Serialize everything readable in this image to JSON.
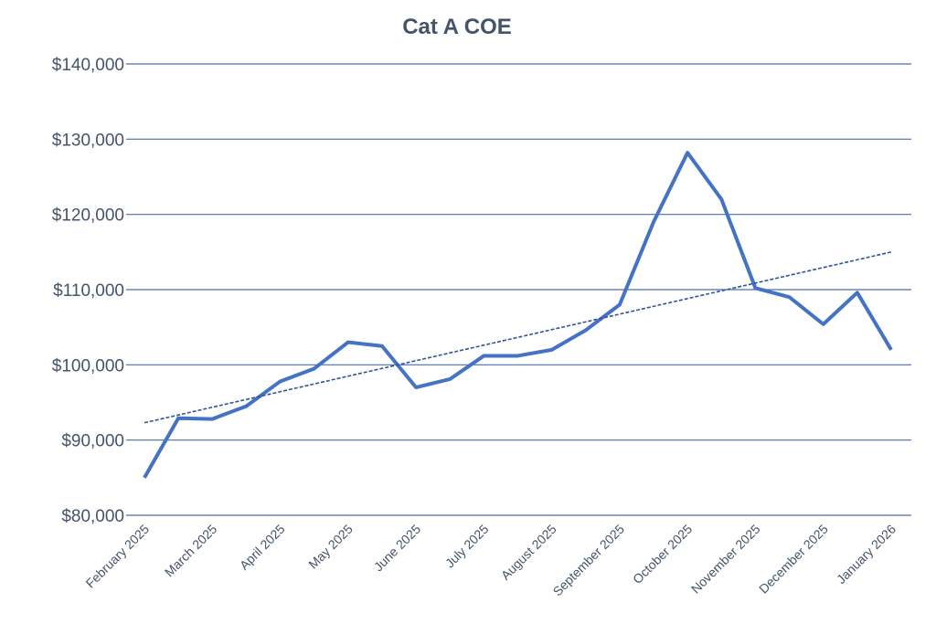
{
  "chart_data": {
    "type": "line",
    "title": "Cat A COE",
    "categories": [
      "February 2025",
      null,
      "March 2025",
      null,
      "April 2025",
      null,
      "May 2025",
      null,
      "June 2025",
      null,
      "July 2025",
      null,
      "August 2025",
      null,
      "September 2025",
      null,
      "October 2025",
      null,
      "November 2025",
      null,
      "December 2025",
      null,
      "January 2026"
    ],
    "values": [
      85000,
      92900,
      92800,
      94500,
      97800,
      99500,
      103000,
      102500,
      97000,
      98100,
      101200,
      101200,
      102000,
      104600,
      108000,
      119000,
      128200,
      122000,
      110200,
      109000,
      105400,
      109600,
      102000
    ],
    "color": "#4472c4",
    "trendline": [
      92300,
      115000
    ],
    "ylim": [
      80000,
      140000
    ],
    "yticks": [
      {
        "value": 80000,
        "label": "$80,000"
      },
      {
        "value": 90000,
        "label": "$90,000"
      },
      {
        "value": 100000,
        "label": "$100,000"
      },
      {
        "value": 110000,
        "label": "$110,000"
      },
      {
        "value": 120000,
        "label": "$120,000"
      },
      {
        "value": 130000,
        "label": "$130,000"
      },
      {
        "value": 140000,
        "label": "$140,000"
      }
    ],
    "grid": true
  }
}
